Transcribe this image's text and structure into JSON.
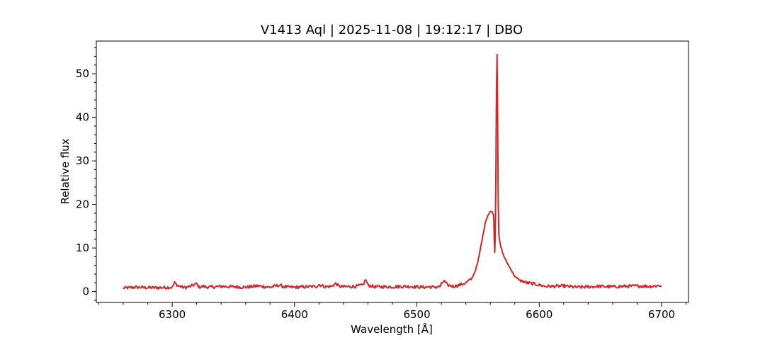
{
  "chart_data": {
    "type": "line",
    "title": "V1413 Aql | 2025-11-08 | 19:12:17 | DBO",
    "xlabel": "Wavelength [Å]",
    "ylabel": "Relative flux",
    "xlim": [
      6238,
      6722
    ],
    "ylim": [
      -2.5,
      57.5
    ],
    "x_ticks": [
      6300,
      6400,
      6500,
      6600,
      6700
    ],
    "y_ticks": [
      0,
      10,
      20,
      30,
      40,
      50
    ],
    "grid": false,
    "series": [
      {
        "color": "#d62728",
        "x": [
          6260,
          6270,
          6280,
          6290,
          6300,
          6302,
          6305,
          6310,
          6315,
          6320,
          6322,
          6325,
          6330,
          6340,
          6350,
          6360,
          6370,
          6380,
          6388,
          6390,
          6395,
          6400,
          6410,
          6418,
          6420,
          6425,
          6430,
          6434,
          6436,
          6440,
          6450,
          6456,
          6458,
          6460,
          6465,
          6470,
          6480,
          6490,
          6500,
          6505,
          6510,
          6515,
          6519,
          6522,
          6525,
          6530,
          6535,
          6540,
          6545,
          6548,
          6550,
          6552,
          6554,
          6556,
          6558,
          6560,
          6561,
          6562,
          6562.8,
          6563.2,
          6563.6,
          6564,
          6564.5,
          6565,
          6565.5,
          6566,
          6566.5,
          6567,
          6568,
          6570,
          6572,
          6575,
          6578,
          6580,
          6582,
          6585,
          6590,
          6595,
          6600,
          6605,
          6610,
          6620,
          6630,
          6640,
          6650,
          6660,
          6670,
          6680,
          6690,
          6700
        ],
        "values": [
          0.8,
          1.0,
          0.9,
          0.9,
          1.0,
          2.0,
          1.3,
          0.9,
          1.2,
          1.8,
          1.0,
          1.2,
          1.0,
          1.2,
          1.1,
          1.0,
          1.3,
          1.0,
          1.5,
          1.2,
          1.0,
          1.0,
          1.1,
          1.2,
          1.6,
          1.1,
          1.2,
          1.9,
          1.2,
          1.1,
          1.2,
          1.5,
          2.8,
          1.5,
          1.1,
          1.1,
          1.1,
          1.2,
          1.1,
          1.0,
          1.1,
          1.0,
          1.2,
          2.5,
          1.5,
          1.2,
          1.5,
          2.0,
          3.0,
          5.0,
          7.0,
          10.0,
          13.0,
          16.0,
          17.5,
          18.3,
          18.5,
          18.0,
          17.5,
          12.0,
          9.0,
          12.0,
          25.0,
          45.0,
          54.5,
          40.0,
          20.0,
          13.0,
          11.0,
          9.0,
          7.5,
          6.0,
          4.5,
          3.5,
          3.0,
          2.5,
          2.0,
          1.8,
          1.5,
          1.2,
          1.2,
          1.3,
          1.0,
          1.1,
          1.2,
          1.1,
          1.2,
          1.3,
          1.2,
          1.4
        ]
      }
    ]
  }
}
